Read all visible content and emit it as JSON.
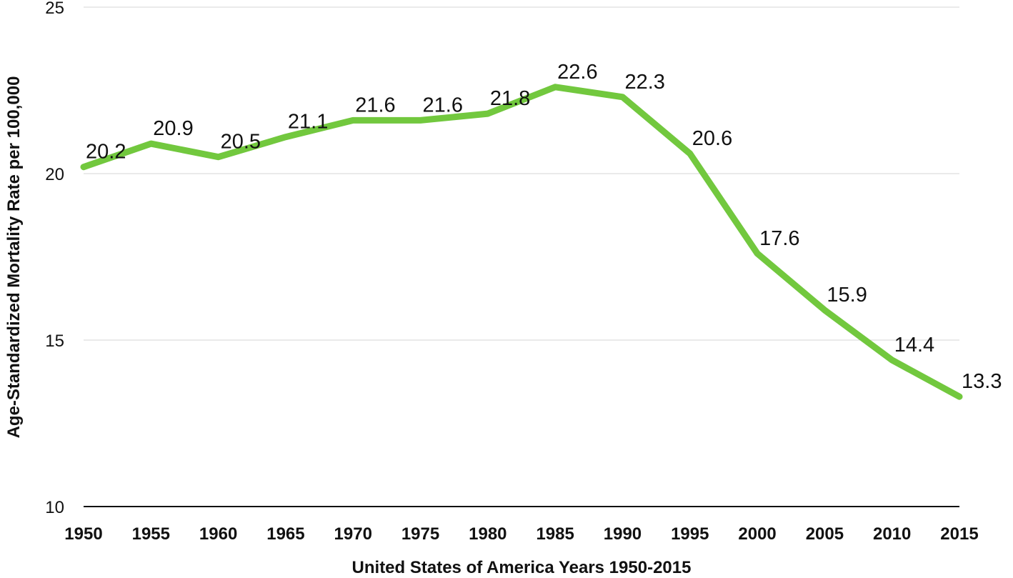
{
  "chart_data": {
    "type": "line",
    "title": "",
    "xlabel": "United States of America Years 1950-2015",
    "ylabel": "Age-Standardized Mortality Rate per 100,000",
    "x": [
      "1950",
      "1955",
      "1960",
      "1965",
      "1970",
      "1975",
      "1980",
      "1985",
      "1990",
      "1995",
      "2000",
      "2005",
      "2010",
      "2015"
    ],
    "series": [
      {
        "values": [
          20.2,
          20.9,
          20.5,
          21.1,
          21.6,
          21.6,
          21.8,
          22.6,
          22.3,
          20.6,
          17.6,
          15.9,
          14.4,
          13.3
        ],
        "labels": [
          "20.2",
          "20.9",
          "20.5",
          "21.1",
          "21.6",
          "21.6",
          "21.8",
          "22.6",
          "22.3",
          "20.6",
          "17.6",
          "15.9",
          "14.4",
          "13.3"
        ],
        "color": "#72c83e"
      }
    ],
    "ylim": [
      10,
      25
    ],
    "yticks": [
      "10",
      "15",
      "20",
      "25"
    ],
    "grid": true,
    "legend": "none"
  }
}
